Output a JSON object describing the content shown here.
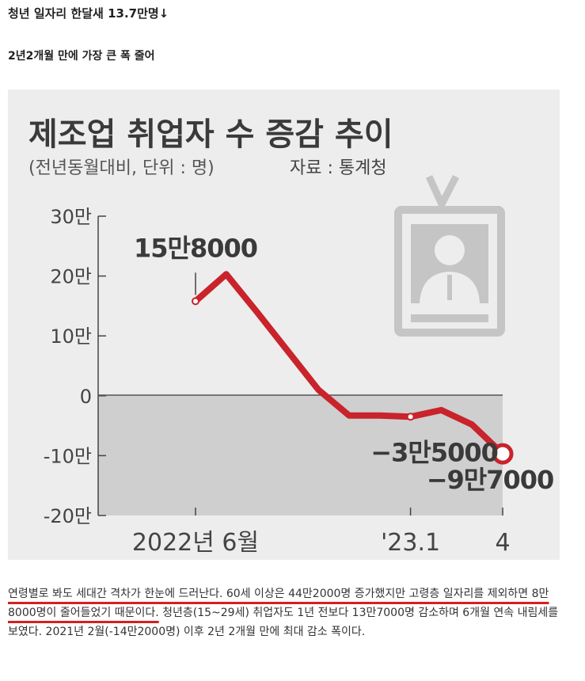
{
  "article": {
    "headline": "청년 일자리 한달새 13.7만명↓",
    "subhead": "2년2개월 만에 가장 큰 폭 줄어",
    "body_highlighted": "연령별로 봐도 세대간 격차가 한눈에 드러난다. 60세 이상은 44만2000명 증가했지만 고령층 일자리를 제외하면 8만8000명이 줄어들었기 때문이다.",
    "body_rest": " 청년층(15~29세) 취업자도 1년 전보다 13만7000명 감소하며 6개월 연속 내림세를 보였다. 2021년 2월(-14만2000명) 이후 2년 2개월 만에 최대 감소 폭이다."
  },
  "chart_data": {
    "type": "line",
    "title": "제조업 취업자 수 증감 추이",
    "subtitle": "(전년동월대비, 단위 : 명)",
    "source": "자료 : 통계청",
    "x": [
      "2022-06",
      "2022-07",
      "2022-08",
      "2022-09",
      "2022-10",
      "2022-11",
      "2022-12",
      "2023-01",
      "2023-02",
      "2023-03",
      "2023-04"
    ],
    "series": [
      {
        "values": [
          158000,
          203000,
          140000,
          75000,
          10000,
          -33000,
          -33000,
          -35000,
          -24000,
          -48000,
          -97000
        ]
      }
    ],
    "ylim": [
      -200000,
      300000
    ],
    "yticks": [
      300000,
      200000,
      100000,
      0,
      -100000,
      -200000
    ],
    "ytick_labels": [
      "30만",
      "20만",
      "10만",
      "0",
      "-10만",
      "-20만"
    ],
    "xtick_labels": [
      {
        "x": "2022-06",
        "label": "2022년 6월"
      },
      {
        "x": "2023-01",
        "label": "'23.1"
      },
      {
        "x": "2023-04",
        "label": "4"
      }
    ],
    "annotations": [
      {
        "x": "2022-06",
        "label": "15만8000"
      },
      {
        "x": "2023-01",
        "label": "−3만5000"
      },
      {
        "x": "2023-04",
        "label": "−9만7000"
      }
    ],
    "colors": {
      "line": "#c9232b",
      "background": "#ededed",
      "negative_zone": "#cfcfcf",
      "icon": "#c5c5c5"
    },
    "decoration": "id-badge-icon"
  }
}
